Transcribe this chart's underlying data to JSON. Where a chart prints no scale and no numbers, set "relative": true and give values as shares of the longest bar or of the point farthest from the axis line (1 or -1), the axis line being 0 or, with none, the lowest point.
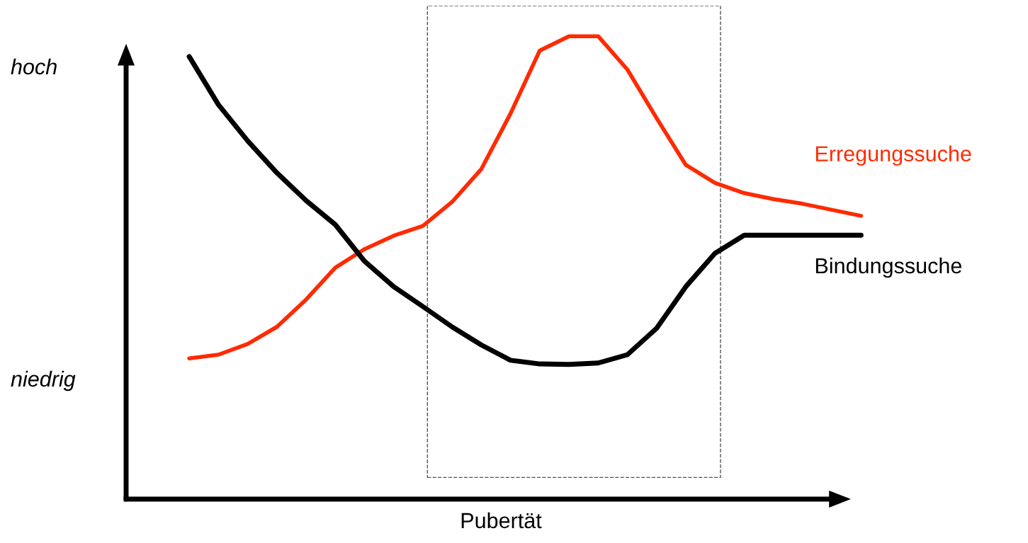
{
  "chart_data": {
    "type": "line",
    "xlabel": "Pubertät",
    "relative": true,
    "categories": [
      null,
      null,
      null,
      null,
      null,
      null,
      null,
      null,
      null,
      null,
      null,
      null,
      null,
      null,
      null,
      null,
      null,
      null,
      null,
      null,
      null,
      null,
      null,
      null
    ],
    "annotations": [
      "hoch",
      "niedrig"
    ],
    "grid": false,
    "legend": false,
    "marker": "none",
    "line_style": "solid",
    "series": [
      {
        "name": "Erregungssuche",
        "color": "#ff2a00",
        "values": [
          0.304,
          0.312,
          0.335,
          0.372,
          0.431,
          0.5,
          0.54,
          0.569,
          0.59,
          0.642,
          0.713,
          0.833,
          0.969,
          1,
          1,
          0.928,
          0.823,
          0.722,
          0.683,
          0.661,
          0.648,
          0.638,
          0.625,
          0.612
        ]
      },
      {
        "name": "Bindungssuche",
        "color": "#000000",
        "values": [
          0.956,
          0.852,
          0.774,
          0.705,
          0.645,
          0.593,
          0.514,
          0.459,
          0.416,
          0.372,
          0.333,
          0.3,
          0.292,
          0.291,
          0.294,
          0.312,
          0.369,
          0.459,
          0.531,
          0.57,
          0.57,
          0.57,
          0.57,
          0.57
        ]
      }
    ]
  }
}
